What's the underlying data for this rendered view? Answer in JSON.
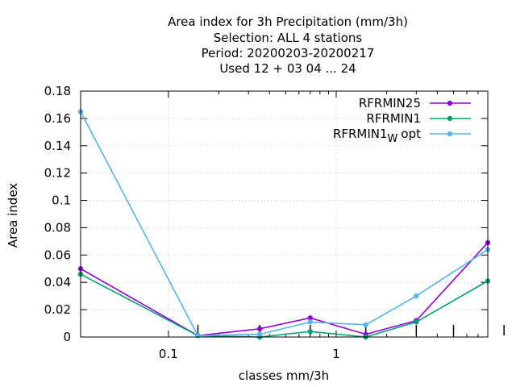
{
  "chart_data": {
    "type": "line",
    "title_lines": [
      "Area index  for 3h Precipitation (mm/3h)",
      "Selection: ALL      4 stations",
      "Period: 20200203-20200217",
      "Used  12 + 03 04 ... 24"
    ],
    "xlabel": "classes mm/3h",
    "ylabel": "Area index",
    "x_scale": "log",
    "xlim": [
      0.03,
      8
    ],
    "ylim": [
      0,
      0.18
    ],
    "x_ticks": [
      {
        "value": 0.1,
        "label": "0.1"
      },
      {
        "value": 1,
        "label": "1"
      }
    ],
    "y_ticks": [
      {
        "value": 0,
        "label": "0"
      },
      {
        "value": 0.02,
        "label": "0.02"
      },
      {
        "value": 0.04,
        "label": "0.04"
      },
      {
        "value": 0.06,
        "label": "0.06"
      },
      {
        "value": 0.08,
        "label": "0.08"
      },
      {
        "value": 0.1,
        "label": "0.1"
      },
      {
        "value": 0.12,
        "label": "0.12"
      },
      {
        "value": 0.14,
        "label": "0.14"
      },
      {
        "value": 0.16,
        "label": "0.16"
      },
      {
        "value": 0.18,
        "label": "0.18"
      }
    ],
    "x_minor_tick_values": [
      0.2,
      0.3,
      0.4,
      0.5,
      0.6,
      0.7,
      0.8,
      0.9,
      2,
      3,
      4,
      5,
      6,
      7,
      8
    ],
    "class_bound_markers": [
      0.15,
      0.35,
      0.7,
      1.5,
      3,
      5,
      10
    ],
    "grid": true,
    "legend_position": "top-right",
    "x": [
      0.03,
      0.15,
      0.35,
      0.7,
      1.5,
      3,
      8
    ],
    "series": [
      {
        "name": "RFRMIN25",
        "color": "#9400d3",
        "values": [
          0.05,
          0.001,
          0.006,
          0.014,
          0.002,
          0.012,
          0.069
        ]
      },
      {
        "name": "RFRMIN1",
        "color": "#009e73",
        "values": [
          0.046,
          0.001,
          0.0,
          0.004,
          0.0,
          0.011,
          0.041
        ]
      },
      {
        "name": "RFRMIN1",
        "name_subscript": "W",
        "name_suffix": "opt",
        "color": "#56b4e9",
        "values": [
          0.165,
          0.001,
          0.002,
          0.011,
          0.009,
          0.03,
          0.064
        ]
      }
    ]
  }
}
